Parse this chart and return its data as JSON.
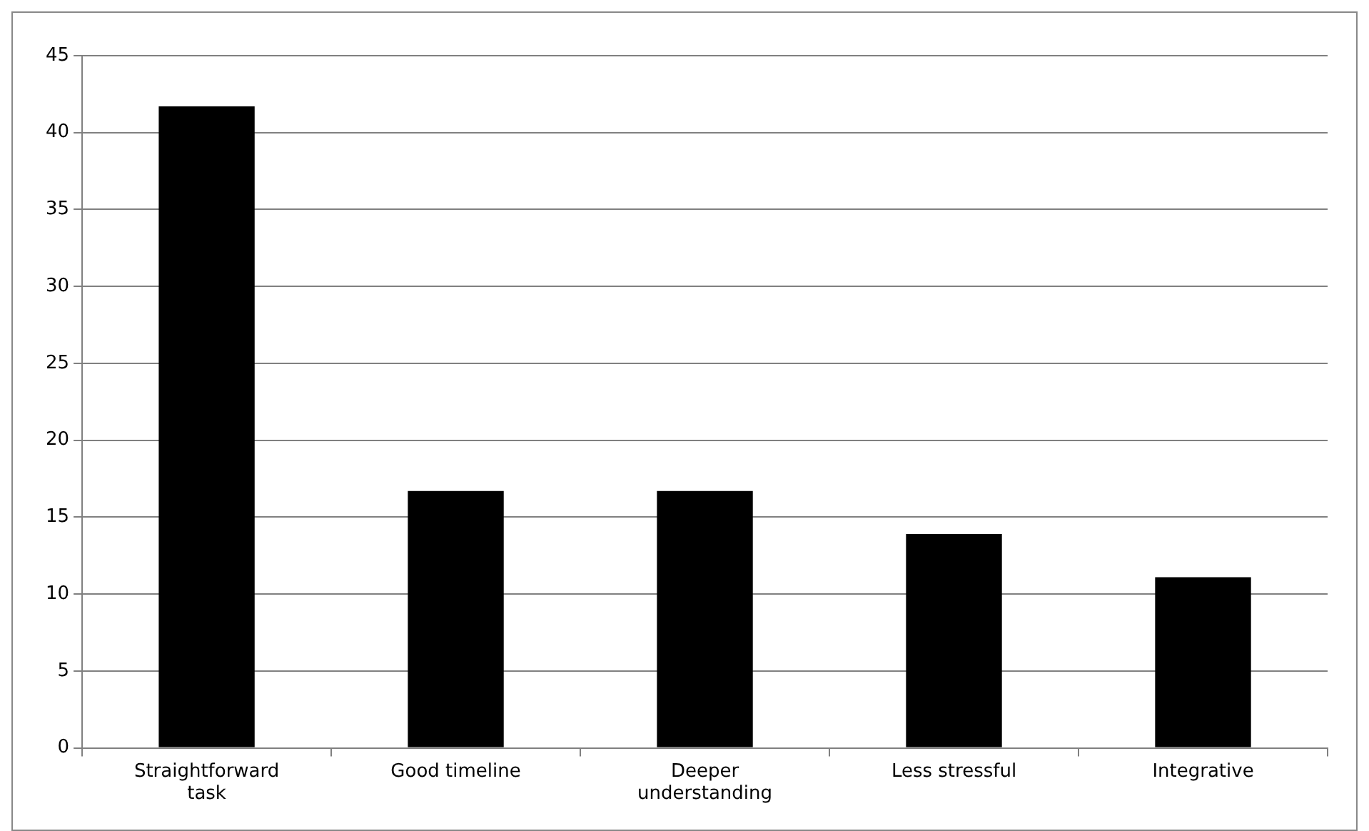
{
  "chart_data": {
    "type": "bar",
    "categories": [
      "Straightforward task",
      "Good timeline",
      "Deeper understanding",
      "Less stressful",
      "Integrative"
    ],
    "values": [
      41.7,
      16.7,
      16.7,
      13.9,
      11.1
    ],
    "color": "#000000",
    "ylim": [
      0,
      45
    ],
    "yticks": [
      0,
      5,
      10,
      15,
      20,
      25,
      30,
      35,
      40,
      45
    ],
    "grid": "y",
    "legend": false
  }
}
